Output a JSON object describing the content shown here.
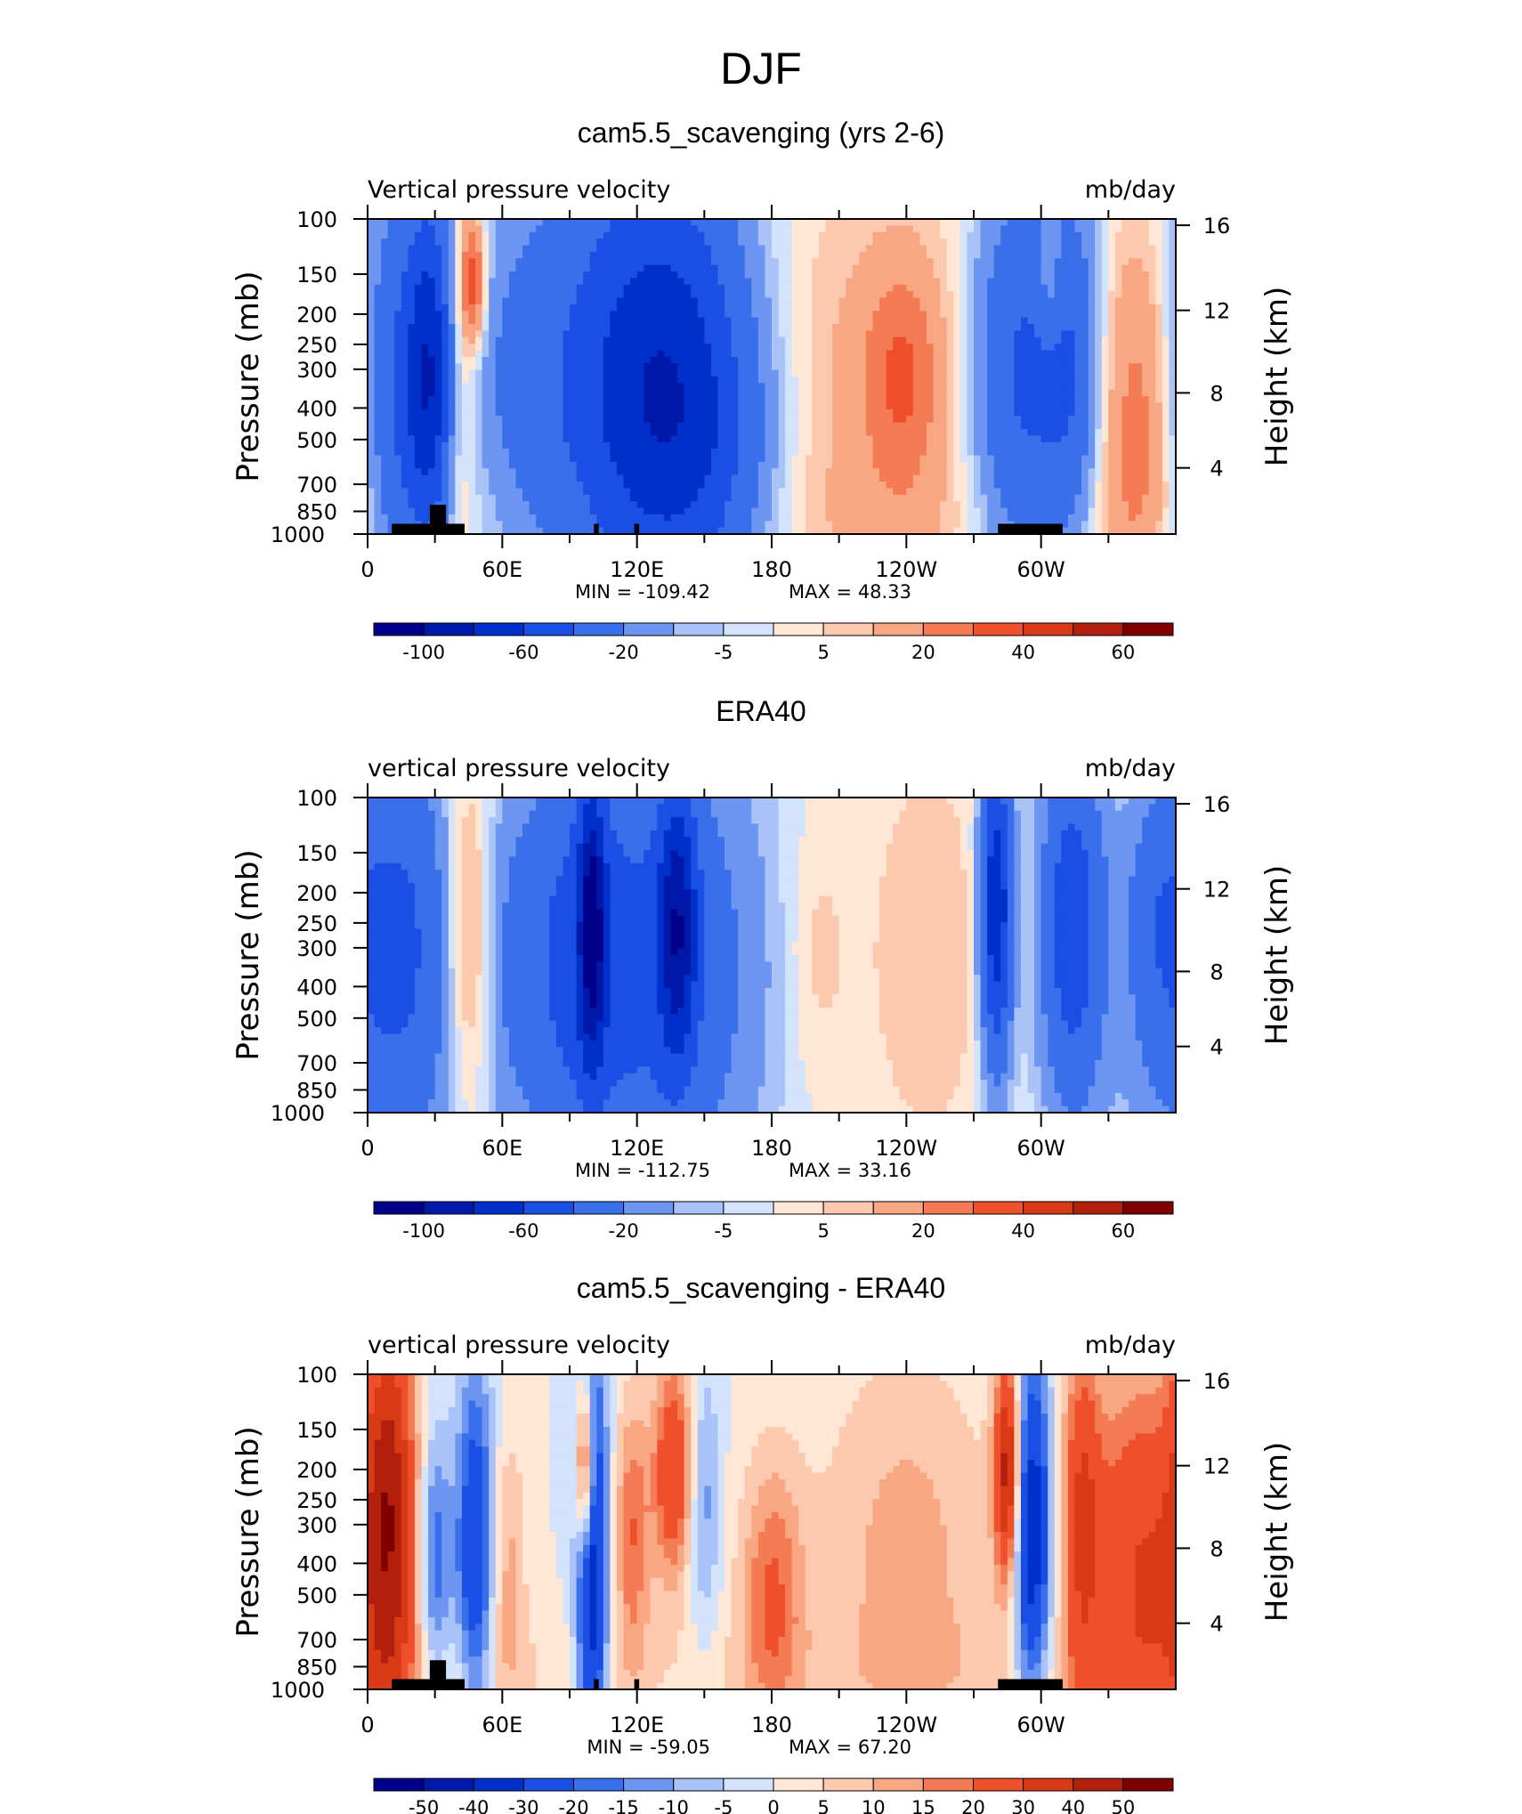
{
  "page": {
    "title": "DJF"
  },
  "chart_data": [
    {
      "type": "heatmap",
      "title": "cam5.5_scavenging (yrs 2-6)",
      "left_label": "Vertical pressure velocity",
      "right_label": "mb/day",
      "ylabel": "Pressure (mb)",
      "y2label": "Height (km)",
      "x_ticklabels": [
        "0",
        "60E",
        "120E",
        "180",
        "120W",
        "60W"
      ],
      "y_ticklabels": [
        "100",
        "150",
        "200",
        "250",
        "300",
        "400",
        "500",
        "700",
        "850",
        "1000"
      ],
      "y2_ticklabels": [
        "16",
        "12",
        "8",
        "4"
      ],
      "min_text": "MIN = -109.42",
      "max_text": "MAX = 48.33",
      "colorbar": {
        "levels": [
          -120,
          -100,
          -80,
          -60,
          -40,
          -20,
          -10,
          -5,
          0,
          5,
          10,
          20,
          30,
          40,
          50,
          60,
          70
        ],
        "labels": [
          "-100",
          "-60",
          "-20",
          "-5",
          "5",
          "20",
          "40",
          "60"
        ],
        "colors": [
          "#00008b",
          "#0018a8",
          "#0030cc",
          "#1a4fe6",
          "#3a6fec",
          "#6d95f2",
          "#a9c2f7",
          "#d2e3fb",
          "#ffe6d5",
          "#fcc9ae",
          "#f9a783",
          "#f47c55",
          "#ef4f2a",
          "#d93a16",
          "#b2200d",
          "#800000"
        ]
      },
      "blobs": [
        {
          "lon": 10,
          "lev": 4,
          "w": 12,
          "h": 5,
          "v": -40
        },
        {
          "lon": 28,
          "lev": 5,
          "w": 8,
          "h": 4,
          "v": -70
        },
        {
          "lon": 40,
          "lev": 5,
          "w": 5,
          "h": 4,
          "v": 20
        },
        {
          "lon": 47,
          "lev": 8,
          "w": 4,
          "h": 1.5,
          "v": 40
        },
        {
          "lon": 65,
          "lev": 5,
          "w": 14,
          "h": 4,
          "v": -12
        },
        {
          "lon": 110,
          "lev": 4.5,
          "w": 30,
          "h": 5.5,
          "v": -45
        },
        {
          "lon": 140,
          "lev": 4.5,
          "w": 24,
          "h": 5,
          "v": -50
        },
        {
          "lon": 160,
          "lev": 2,
          "w": 20,
          "h": 3,
          "v": -12
        },
        {
          "lon": 225,
          "lev": 4.5,
          "w": 45,
          "h": 5,
          "v": 12
        },
        {
          "lon": 238,
          "lev": 5,
          "w": 12,
          "h": 2.5,
          "v": 22
        },
        {
          "lon": 290,
          "lev": 5,
          "w": 15,
          "h": 4.5,
          "v": -45
        },
        {
          "lon": 314,
          "lev": 5,
          "w": 10,
          "h": 4,
          "v": -35
        },
        {
          "lon": 304,
          "lev": 8,
          "w": 4,
          "h": 1.5,
          "v": 20
        },
        {
          "lon": 345,
          "lev": 4,
          "w": 16,
          "h": 4,
          "v": 25
        },
        {
          "lon": 0,
          "lev": 1,
          "w": 30,
          "h": 2,
          "v": 4
        },
        {
          "lon": 180,
          "lev": 0.5,
          "w": 150,
          "h": 1.5,
          "v": 4
        }
      ]
    },
    {
      "type": "heatmap",
      "title": "ERA40",
      "left_label": "vertical pressure velocity",
      "right_label": "mb/day",
      "ylabel": "Pressure (mb)",
      "y2label": "Height (km)",
      "x_ticklabels": [
        "0",
        "60E",
        "120E",
        "180",
        "120W",
        "60W"
      ],
      "y_ticklabels": [
        "100",
        "150",
        "200",
        "250",
        "300",
        "400",
        "500",
        "700",
        "850",
        "1000"
      ],
      "y2_ticklabels": [
        "16",
        "12",
        "8",
        "4"
      ],
      "min_text": "MIN = -112.75",
      "max_text": "MAX = 33.16",
      "colorbar": {
        "levels": [
          -120,
          -100,
          -80,
          -60,
          -40,
          -20,
          -10,
          -5,
          0,
          5,
          10,
          20,
          30,
          40,
          50,
          60,
          70
        ],
        "labels": [
          "-100",
          "-60",
          "-20",
          "-5",
          "5",
          "20",
          "40",
          "60"
        ],
        "colors": [
          "#00008b",
          "#0018a8",
          "#0030cc",
          "#1a4fe6",
          "#3a6fec",
          "#6d95f2",
          "#a9c2f7",
          "#d2e3fb",
          "#ffe6d5",
          "#fcc9ae",
          "#f9a783",
          "#f47c55",
          "#ef4f2a",
          "#d93a16",
          "#b2200d",
          "#800000"
        ]
      },
      "blobs": [
        {
          "lon": 14,
          "lev": 5.5,
          "w": 18,
          "h": 4.5,
          "v": -45
        },
        {
          "lon": 45,
          "lev": 5.5,
          "w": 8,
          "h": 4,
          "v": 25
        },
        {
          "lon": 62,
          "lev": 5,
          "w": 10,
          "h": 4,
          "v": -12
        },
        {
          "lon": 92,
          "lev": 5,
          "w": 18,
          "h": 4.5,
          "v": -35
        },
        {
          "lon": 100,
          "lev": 6,
          "w": 4,
          "h": 3,
          "v": -70
        },
        {
          "lon": 130,
          "lev": 4.5,
          "w": 30,
          "h": 5.5,
          "v": -40
        },
        {
          "lon": 138,
          "lev": 6,
          "w": 6,
          "h": 3,
          "v": -65
        },
        {
          "lon": 200,
          "lev": 5,
          "w": 10,
          "h": 3,
          "v": 8
        },
        {
          "lon": 250,
          "lev": 5,
          "w": 20,
          "h": 4.5,
          "v": 10
        },
        {
          "lon": 280,
          "lev": 6.5,
          "w": 5,
          "h": 3.5,
          "v": -80
        },
        {
          "lon": 314,
          "lev": 6,
          "w": 10,
          "h": 4,
          "v": -55
        },
        {
          "lon": 350,
          "lev": 6,
          "w": 10,
          "h": 3,
          "v": -20
        },
        {
          "lon": 0,
          "lev": 1,
          "w": 40,
          "h": 2,
          "v": -5
        }
      ]
    },
    {
      "type": "heatmap",
      "title": "cam5.5_scavenging - ERA40",
      "left_label": "vertical pressure velocity",
      "right_label": "mb/day",
      "ylabel": "Pressure (mb)",
      "y2label": "Height (km)",
      "x_ticklabels": [
        "0",
        "60E",
        "120E",
        "180",
        "120W",
        "60W"
      ],
      "y_ticklabels": [
        "100",
        "150",
        "200",
        "250",
        "300",
        "400",
        "500",
        "700",
        "850",
        "1000"
      ],
      "y2_ticklabels": [
        "16",
        "12",
        "8",
        "4"
      ],
      "min_text": "MIN = -59.05",
      "max_text": "MAX = 67.20",
      "colorbar": {
        "levels": [
          -60,
          -50,
          -40,
          -30,
          -20,
          -15,
          -10,
          -5,
          0,
          5,
          10,
          15,
          20,
          30,
          40,
          50,
          60
        ],
        "labels": [
          "-50",
          "-40",
          "-30",
          "-20",
          "-15",
          "-10",
          "-5",
          "0",
          "5",
          "10",
          "15",
          "20",
          "30",
          "40",
          "50"
        ],
        "colors": [
          "#00008b",
          "#0018a8",
          "#0030cc",
          "#1a4fe6",
          "#3a6fec",
          "#6d95f2",
          "#a9c2f7",
          "#d2e3fb",
          "#ffe6d5",
          "#fcc9ae",
          "#f9a783",
          "#f47c55",
          "#ef4f2a",
          "#d93a16",
          "#b2200d",
          "#800000"
        ]
      },
      "blobs": [
        {
          "lon": 10,
          "lev": 5.5,
          "w": 8,
          "h": 5,
          "v": 40
        },
        {
          "lon": 30,
          "lev": 4,
          "w": 5,
          "h": 3,
          "v": -20
        },
        {
          "lon": 48,
          "lev": 4.5,
          "w": 6,
          "h": 4,
          "v": -30
        },
        {
          "lon": 62,
          "lev": 4,
          "w": 6,
          "h": 3,
          "v": 12
        },
        {
          "lon": 100,
          "lev": 4,
          "w": 5,
          "h": 5,
          "v": -40
        },
        {
          "lon": 97,
          "lev": 7,
          "w": 3,
          "h": 2,
          "v": 40
        },
        {
          "lon": 118,
          "lev": 5,
          "w": 6,
          "h": 3,
          "v": 20
        },
        {
          "lon": 136,
          "lev": 7,
          "w": 6,
          "h": 2.5,
          "v": 30
        },
        {
          "lon": 150,
          "lev": 6,
          "w": 5,
          "h": 3,
          "v": -12
        },
        {
          "lon": 180,
          "lev": 3,
          "w": 10,
          "h": 3,
          "v": 20
        },
        {
          "lon": 240,
          "lev": 4.5,
          "w": 28,
          "h": 4.5,
          "v": 12
        },
        {
          "lon": 285,
          "lev": 7,
          "w": 4,
          "h": 2.5,
          "v": 45
        },
        {
          "lon": 296,
          "lev": 5,
          "w": 6,
          "h": 4,
          "v": -40
        },
        {
          "lon": 318,
          "lev": 5.5,
          "w": 6,
          "h": 4,
          "v": 25
        },
        {
          "lon": 345,
          "lev": 4,
          "w": 18,
          "h": 4.5,
          "v": 30
        },
        {
          "lon": 0,
          "lev": 0.5,
          "w": 180,
          "h": 1.5,
          "v": 5
        }
      ]
    }
  ]
}
